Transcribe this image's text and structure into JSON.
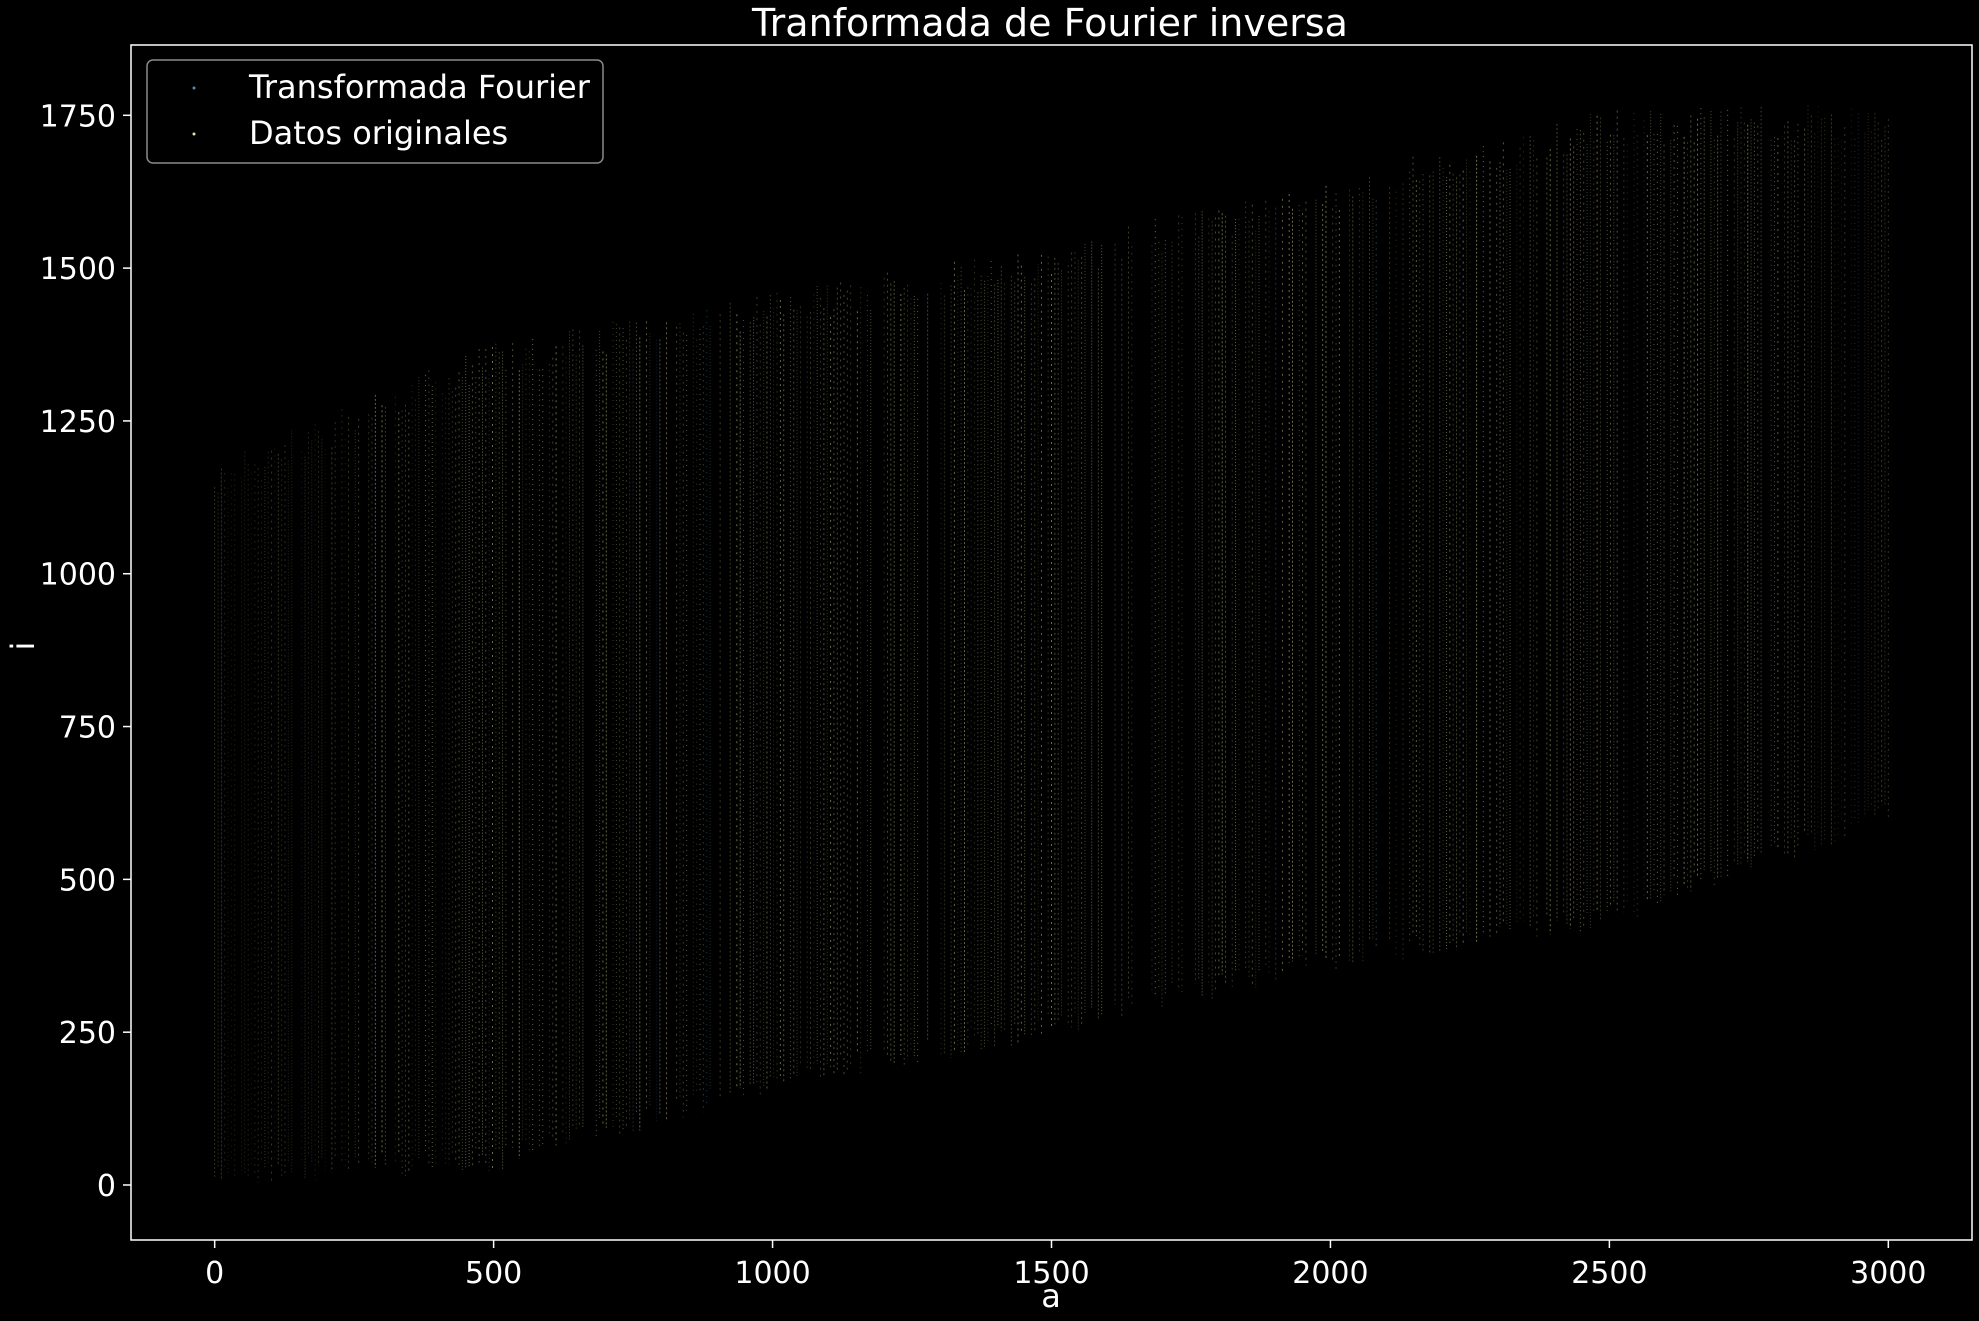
{
  "chart_data": {
    "type": "scatter",
    "title": "Tranformada de Fourier inversa",
    "xlabel": "a",
    "ylabel": "i",
    "xlim": [
      -150,
      3150
    ],
    "ylim": [
      -90,
      1865
    ],
    "xticks": [
      0,
      500,
      1000,
      1500,
      2000,
      2500,
      3000
    ],
    "xtick_labels": [
      "0",
      "500",
      "1000",
      "1500",
      "2000",
      "2500",
      "3000"
    ],
    "yticks": [
      0,
      250,
      500,
      750,
      1000,
      1250,
      1500,
      1750
    ],
    "ytick_labels": [
      "0",
      "250",
      "500",
      "750",
      "1000",
      "1250",
      "1500",
      "1750"
    ],
    "grid": false,
    "legend_position": "top-left",
    "series": [
      {
        "name": "Transformada Fourier",
        "color": "#4c8fb8",
        "description_of_extent": [
          {
            "x": 0,
            "i_min": 0,
            "i_max": 1180
          },
          {
            "x": 500,
            "i_min": 20,
            "i_max": 1380
          },
          {
            "x": 1000,
            "i_min": 150,
            "i_max": 1460
          },
          {
            "x": 1500,
            "i_min": 240,
            "i_max": 1540
          },
          {
            "x": 2000,
            "i_min": 350,
            "i_max": 1650
          },
          {
            "x": 2500,
            "i_min": 420,
            "i_max": 1760
          },
          {
            "x": 3000,
            "i_min": 590,
            "i_max": 1770
          }
        ]
      },
      {
        "name": "Datos originales",
        "color": "#e8e59a",
        "description_of_extent": [
          {
            "x": 0,
            "i_min": 0,
            "i_max": 1180
          },
          {
            "x": 500,
            "i_min": 20,
            "i_max": 1380
          },
          {
            "x": 1000,
            "i_min": 150,
            "i_max": 1460
          },
          {
            "x": 1500,
            "i_min": 240,
            "i_max": 1540
          },
          {
            "x": 2000,
            "i_min": 350,
            "i_max": 1650
          },
          {
            "x": 2500,
            "i_min": 420,
            "i_max": 1760
          },
          {
            "x": 3000,
            "i_min": 590,
            "i_max": 1770
          }
        ]
      }
    ]
  },
  "colors": {
    "background": "#000000",
    "axes": "#ffffff",
    "text": "#ffffff"
  }
}
